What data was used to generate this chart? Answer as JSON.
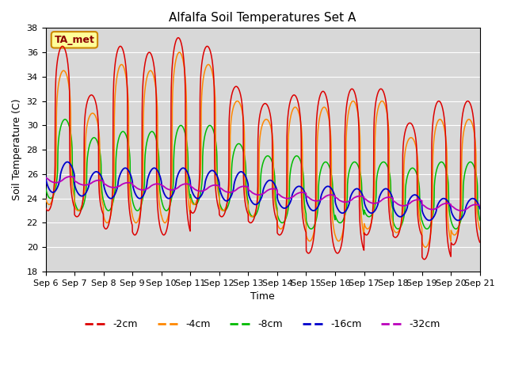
{
  "title": "Alfalfa Soil Temperatures Set A",
  "xlabel": "Time",
  "ylabel": "Soil Temperature (C)",
  "ylim": [
    18,
    38
  ],
  "xlim": [
    0,
    15
  ],
  "bg_color": "#d8d8d8",
  "series_colors": {
    "-2cm": "#dd0000",
    "-4cm": "#ff8800",
    "-8cm": "#00bb00",
    "-16cm": "#0000cc",
    "-32cm": "#bb00bb"
  },
  "annotation_text": "TA_met",
  "annotation_bg": "#ffff99",
  "annotation_border": "#cc8800",
  "x_tick_labels": [
    "Sep 6",
    "Sep 7",
    "Sep 8",
    "Sep 9",
    "Sep 10",
    "Sep 11",
    "Sep 12",
    "Sep 13",
    "Sep 14",
    "Sep 15",
    "Sep 16",
    "Sep 17",
    "Sep 18",
    "Sep 19",
    "Sep 20",
    "Sep 21"
  ],
  "ytick_values": [
    18,
    20,
    22,
    24,
    26,
    28,
    30,
    32,
    34,
    36,
    38
  ],
  "days": 15,
  "pts_per_day": 144
}
